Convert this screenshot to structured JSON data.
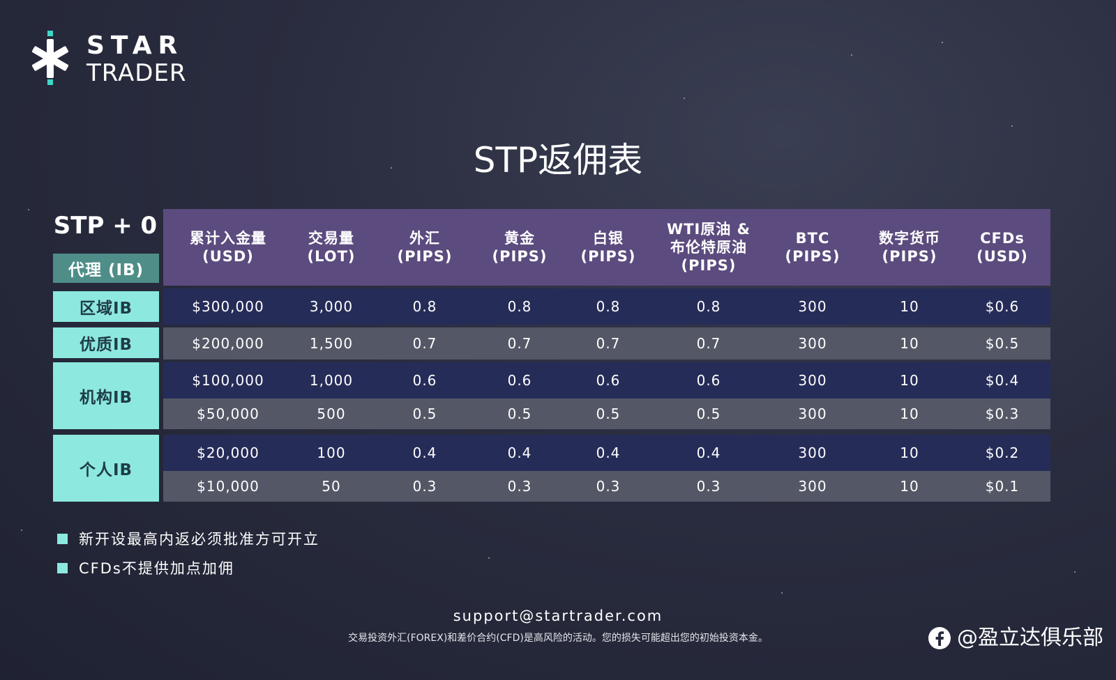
{
  "brand": {
    "line1": "STAR",
    "line2": "TRADER"
  },
  "page_title": "STP返佣表",
  "table": {
    "corner_label": "STP + 0",
    "row_header_label": "代理 (IB)",
    "columns": [
      "累计入金量\n(USD)",
      "交易量\n(LOT)",
      "外汇\n(PIPS)",
      "黄金\n(PIPS)",
      "白银\n(PIPS)",
      "WTI原油 &\n布伦特原油\n(PIPS)",
      "BTC\n(PIPS)",
      "数字货币\n(PIPS)",
      "CFDs\n(USD)"
    ],
    "groups": [
      "区域IB",
      "优质IB",
      "机构IB",
      "个人IB"
    ],
    "rows": [
      [
        "$300,000",
        "3,000",
        "0.8",
        "0.8",
        "0.8",
        "0.8",
        "300",
        "10",
        "$0.6"
      ],
      [
        "$200,000",
        "1,500",
        "0.7",
        "0.7",
        "0.7",
        "0.7",
        "300",
        "10",
        "$0.5"
      ],
      [
        "$100,000",
        "1,000",
        "0.6",
        "0.6",
        "0.6",
        "0.6",
        "300",
        "10",
        "$0.4"
      ],
      [
        "$50,000",
        "500",
        "0.5",
        "0.5",
        "0.5",
        "0.5",
        "300",
        "10",
        "$0.3"
      ],
      [
        "$20,000",
        "100",
        "0.4",
        "0.4",
        "0.4",
        "0.4",
        "300",
        "10",
        "$0.2"
      ],
      [
        "$10,000",
        "50",
        "0.3",
        "0.3",
        "0.3",
        "0.3",
        "300",
        "10",
        "$0.1"
      ]
    ]
  },
  "notes": [
    "新开设最高内返必须批准方可开立",
    "CFDs不提供加点加佣"
  ],
  "footer": {
    "email": "support@startrader.com",
    "disclaimer": "交易投资外汇(FOREX)和差价合约(CFD)是高风险的活动。您的损失可能超出您的初始投资本金。"
  },
  "watermark": "@盈立达俱乐部",
  "colors": {
    "background": "#2a2d3f",
    "header_purple": "#5b4b7e",
    "row_dark": "#262c58",
    "row_gray": "#545866",
    "accent_teal": "#8de8e0",
    "accent_teal_dark": "#4f8e88"
  }
}
